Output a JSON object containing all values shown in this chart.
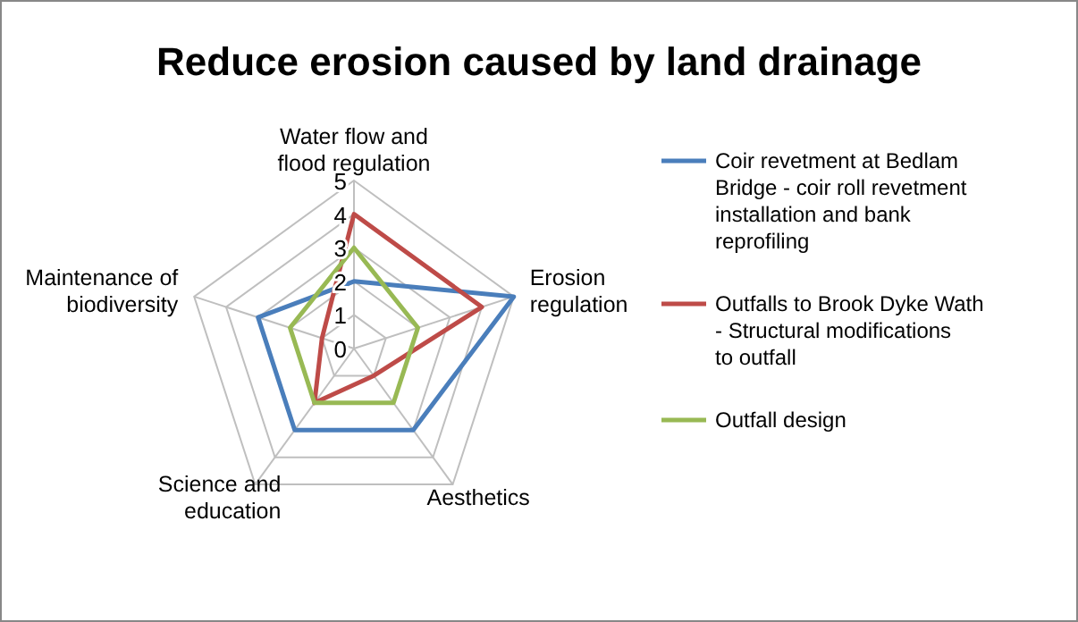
{
  "chart_data": {
    "type": "radar",
    "title": "Reduce erosion caused by land drainage",
    "categories": [
      "Water flow and flood regulation",
      "Erosion regulation",
      "Aesthetics",
      "Science and education",
      "Maintenance of biodiversity"
    ],
    "series": [
      {
        "name": "Coir revetment at Bedlam Bridge - coir roll revetment installation and bank reprofiling",
        "color": "#4a7ebb",
        "values": [
          2,
          5,
          3,
          3,
          3
        ]
      },
      {
        "name": "Outfalls to Brook Dyke Wath - Structural modifications to outfall",
        "color": "#be4b48",
        "values": [
          4,
          4,
          1,
          2,
          1
        ]
      },
      {
        "name": "Outfall design",
        "color": "#98b954",
        "values": [
          3,
          2,
          2,
          2,
          2
        ]
      }
    ],
    "ylim": [
      0,
      5
    ],
    "yticks": [
      0,
      1,
      2,
      3,
      4,
      5
    ],
    "grid": true,
    "legend": "right",
    "marker": "none",
    "line_style": "solid"
  }
}
